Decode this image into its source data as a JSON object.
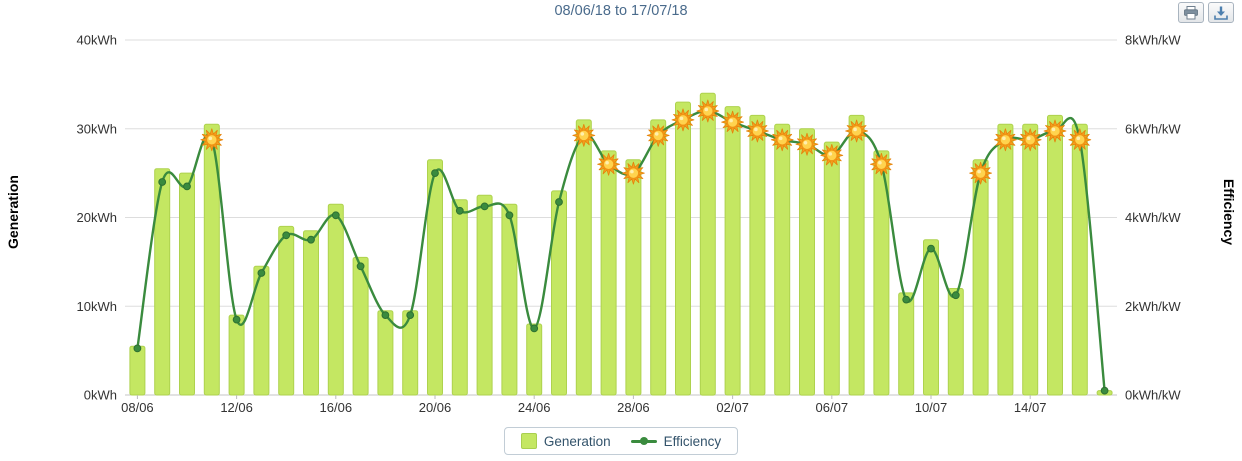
{
  "toolbar": {
    "buttons": [
      {
        "name": "print",
        "icon": "printer-icon"
      },
      {
        "name": "export",
        "icon": "download-icon"
      }
    ]
  },
  "chart_data": {
    "type": "combo-bar-line",
    "title": "08/06/18 to 17/07/18",
    "grid": true,
    "legend_position": "bottom",
    "x_tick_every": 4,
    "x_tick_labels": [
      "08/06",
      "12/06",
      "16/06",
      "20/06",
      "24/06",
      "28/06",
      "02/07",
      "06/07",
      "10/07",
      "14/07"
    ],
    "categories": [
      "08/06",
      "09/06",
      "10/06",
      "11/06",
      "12/06",
      "13/06",
      "14/06",
      "15/06",
      "16/06",
      "17/06",
      "18/06",
      "19/06",
      "20/06",
      "21/06",
      "22/06",
      "23/06",
      "24/06",
      "25/06",
      "26/06",
      "27/06",
      "28/06",
      "29/06",
      "30/06",
      "01/07",
      "02/07",
      "03/07",
      "04/07",
      "05/07",
      "06/07",
      "07/07",
      "08/07",
      "09/07",
      "10/07",
      "11/07",
      "12/07",
      "13/07",
      "14/07",
      "15/07",
      "16/07",
      "17/07"
    ],
    "ylim_left": [
      0,
      40
    ],
    "ylim_right": [
      0,
      8
    ],
    "left_axis": {
      "label": "Generation",
      "unit": "kWh",
      "ticks": [
        "0kWh",
        "10kWh",
        "20kWh",
        "30kWh",
        "40kWh"
      ]
    },
    "right_axis": {
      "label": "Efficiency",
      "unit": "kWh/kW",
      "ticks": [
        "0kWh/kW",
        "2kWh/kW",
        "4kWh/kW",
        "6kWh/kW",
        "8kWh/kW"
      ]
    },
    "series": [
      {
        "name": "Generation",
        "type": "bar",
        "axis": "left",
        "unit": "kWh",
        "color": "#c4e762",
        "border_color": "#aed24e",
        "values": [
          5.5,
          25.5,
          25,
          30.5,
          9,
          14.5,
          19,
          18.5,
          21.5,
          15.5,
          9.5,
          9.5,
          26.5,
          22,
          22.5,
          21.5,
          8,
          23,
          31,
          27.5,
          26.5,
          31,
          33,
          34,
          32.5,
          31.5,
          30.5,
          30,
          28.5,
          31.5,
          27.5,
          11.5,
          17.5,
          12,
          26.5,
          30.5,
          30.5,
          31.5,
          30.5,
          0.5
        ]
      },
      {
        "name": "Efficiency",
        "type": "line",
        "axis": "right",
        "unit": "kWh/kW",
        "color": "#3a8b3e",
        "values": [
          1.05,
          4.8,
          4.7,
          5.75,
          1.7,
          2.75,
          3.6,
          3.5,
          4.05,
          2.9,
          1.8,
          1.8,
          5.0,
          4.15,
          4.25,
          4.05,
          1.5,
          4.35,
          5.85,
          5.2,
          5.0,
          5.85,
          6.2,
          6.4,
          6.15,
          5.95,
          5.75,
          5.65,
          5.4,
          5.95,
          5.2,
          2.15,
          3.3,
          2.25,
          5.0,
          5.75,
          5.75,
          5.95,
          5.75,
          0.1
        ],
        "sun_days": [
          3,
          18,
          19,
          20,
          21,
          22,
          23,
          24,
          25,
          26,
          27,
          28,
          29,
          30,
          34,
          35,
          36,
          37,
          38
        ]
      }
    ],
    "sun_color": "#f6a01e",
    "legend": [
      {
        "label": "Generation"
      },
      {
        "label": "Efficiency"
      }
    ]
  }
}
